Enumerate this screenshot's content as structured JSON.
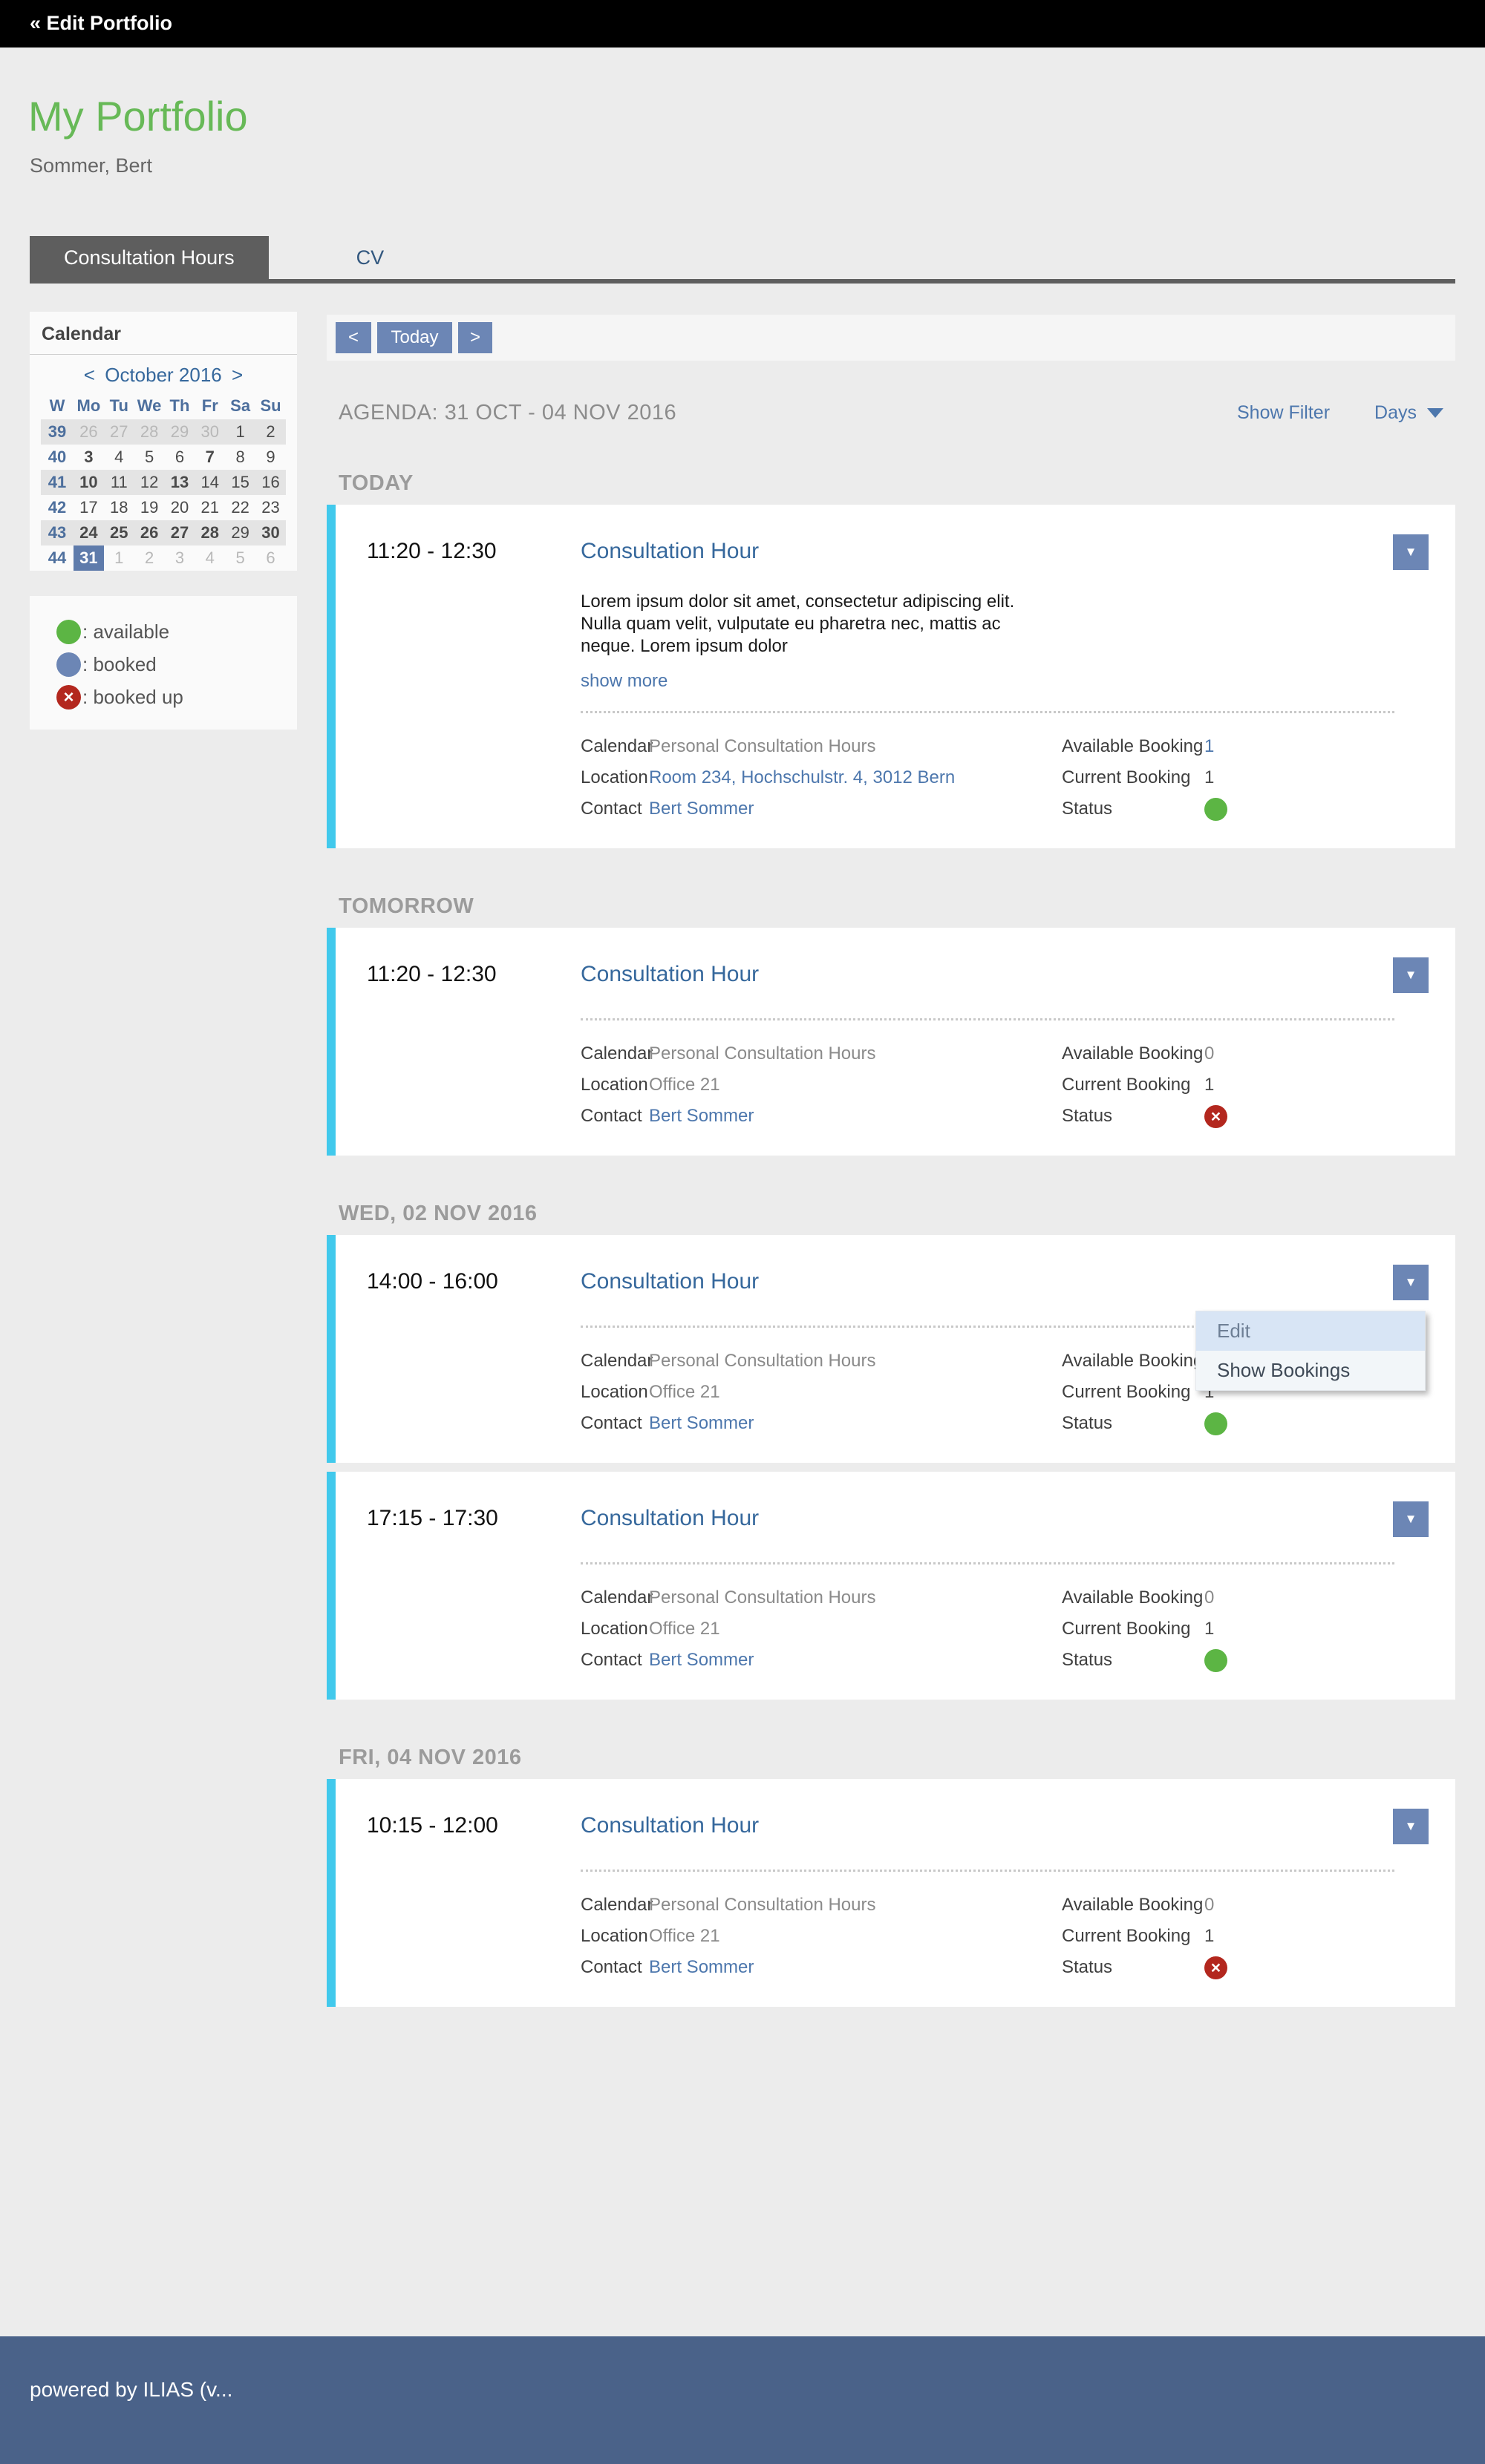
{
  "topbar": {
    "back_label": "« Edit Portfolio"
  },
  "page": {
    "title": "My Portfolio",
    "subtitle": "Sommer, Bert"
  },
  "tabs": [
    {
      "label": "Consultation Hours",
      "active": true
    },
    {
      "label": "CV",
      "active": false
    }
  ],
  "calendar": {
    "panel_title": "Calendar",
    "prev": "<",
    "month_label": "October 2016",
    "next": ">",
    "day_headers": [
      "W",
      "Mo",
      "Tu",
      "We",
      "Th",
      "Fr",
      "Sa",
      "Su"
    ],
    "weeks": [
      {
        "num": "39",
        "shaded": true,
        "days": [
          {
            "d": "26",
            "m": true
          },
          {
            "d": "27",
            "m": true
          },
          {
            "d": "28",
            "m": true
          },
          {
            "d": "29",
            "m": true
          },
          {
            "d": "30",
            "m": true
          },
          {
            "d": "1"
          },
          {
            "d": "2"
          }
        ]
      },
      {
        "num": "40",
        "shaded": false,
        "days": [
          {
            "d": "3",
            "b": true
          },
          {
            "d": "4"
          },
          {
            "d": "5"
          },
          {
            "d": "6"
          },
          {
            "d": "7",
            "b": true
          },
          {
            "d": "8"
          },
          {
            "d": "9"
          }
        ]
      },
      {
        "num": "41",
        "shaded": true,
        "days": [
          {
            "d": "10",
            "b": true
          },
          {
            "d": "11"
          },
          {
            "d": "12"
          },
          {
            "d": "13",
            "b": true
          },
          {
            "d": "14"
          },
          {
            "d": "15"
          },
          {
            "d": "16"
          }
        ]
      },
      {
        "num": "42",
        "shaded": false,
        "days": [
          {
            "d": "17"
          },
          {
            "d": "18"
          },
          {
            "d": "19"
          },
          {
            "d": "20"
          },
          {
            "d": "21"
          },
          {
            "d": "22"
          },
          {
            "d": "23"
          }
        ]
      },
      {
        "num": "43",
        "shaded": true,
        "days": [
          {
            "d": "24",
            "b": true
          },
          {
            "d": "25",
            "b": true
          },
          {
            "d": "26",
            "b": true
          },
          {
            "d": "27",
            "b": true
          },
          {
            "d": "28",
            "b": true
          },
          {
            "d": "29"
          },
          {
            "d": "30",
            "b": true
          }
        ]
      },
      {
        "num": "44",
        "shaded": false,
        "days": [
          {
            "d": "31",
            "s": true
          },
          {
            "d": "1",
            "m": true
          },
          {
            "d": "2",
            "m": true
          },
          {
            "d": "3",
            "m": true
          },
          {
            "d": "4",
            "m": true
          },
          {
            "d": "5",
            "m": true
          },
          {
            "d": "6",
            "m": true
          }
        ]
      }
    ]
  },
  "legend": [
    {
      "type": "available",
      "label": ": available",
      "color": "#5cb544",
      "glyph": ""
    },
    {
      "type": "booked",
      "label": ": booked",
      "color": "#6c86b5",
      "glyph": ""
    },
    {
      "type": "booked-up",
      "label": ": booked up",
      "color": "#b3271e",
      "glyph": "×"
    }
  ],
  "toolbar": {
    "prev": "<",
    "today": "Today",
    "next": ">"
  },
  "agenda": {
    "title": "AGENDA: 31 OCT - 04 NOV 2016",
    "show_filter": "Show Filter",
    "range_dropdown": "Days"
  },
  "labels": {
    "calendar": "Calendar",
    "location": "Location",
    "contact": "Contact",
    "available": "Available Booking",
    "current": "Current Booking",
    "status": "Status",
    "show_more": "show more"
  },
  "menu": {
    "items": [
      "Edit",
      "Show Bookings"
    ],
    "hover_index": 0
  },
  "sections": [
    {
      "heading": "TODAY",
      "events": [
        {
          "time": "11:20 - 12:30",
          "title": "Consultation Hour",
          "description": "Lorem ipsum dolor sit amet, consectetur adipiscing elit. Nulla quam velit, vulputate eu pharetra nec, mattis ac neque. Lorem ipsum dolor",
          "show_more": true,
          "calendar": "Personal Consultation Hours",
          "location": "Room 234, Hochschulstr. 4, 3012 Bern",
          "location_is_link": true,
          "contact": "Bert Sommer",
          "available": "1",
          "available_is_link": true,
          "current": "1",
          "status": "available",
          "menu_open": false
        }
      ]
    },
    {
      "heading": "TOMORROW",
      "events": [
        {
          "time": "11:20 - 12:30",
          "title": "Consultation Hour",
          "calendar": "Personal Consultation Hours",
          "location": "Office 21",
          "location_is_link": false,
          "contact": "Bert Sommer",
          "available": "0",
          "available_is_link": false,
          "current": "1",
          "status": "booked-up",
          "menu_open": false
        }
      ]
    },
    {
      "heading": "WED, 02 NOV 2016",
      "events": [
        {
          "time": "14:00 - 16:00",
          "title": "Consultation Hour",
          "calendar": "Personal Consultation Hours",
          "location": "Office 21",
          "location_is_link": false,
          "contact": "Bert Sommer",
          "available": "0",
          "available_is_link": false,
          "current": "1",
          "status": "available",
          "menu_open": true
        },
        {
          "time": "17:15 - 17:30",
          "title": "Consultation Hour",
          "calendar": "Personal Consultation Hours",
          "location": "Office 21",
          "location_is_link": false,
          "contact": "Bert Sommer",
          "available": "0",
          "available_is_link": false,
          "current": "1",
          "status": "available",
          "menu_open": false
        }
      ]
    },
    {
      "heading": "FRI, 04 NOV 2016",
      "events": [
        {
          "time": "10:15 - 12:00",
          "title": "Consultation Hour",
          "calendar": "Personal Consultation Hours",
          "location": "Office 21",
          "location_is_link": false,
          "contact": "Bert Sommer",
          "available": "0",
          "available_is_link": false,
          "current": "1",
          "status": "booked-up",
          "menu_open": false
        }
      ]
    }
  ],
  "footer": {
    "text": "powered by ILIAS (v..."
  }
}
